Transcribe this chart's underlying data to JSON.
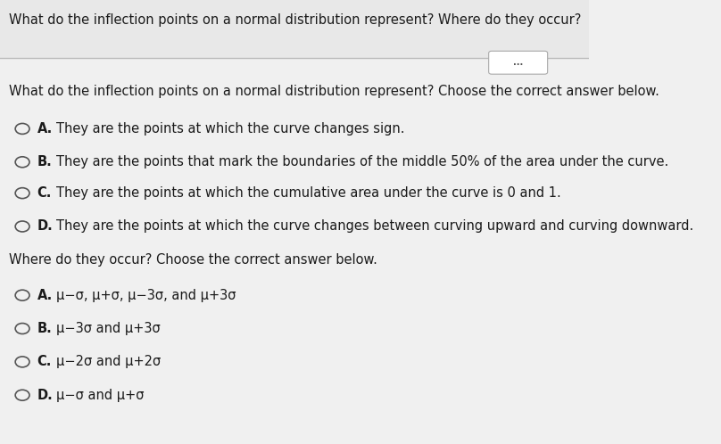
{
  "bg_color": "#f0f0f0",
  "panel_color": "#ffffff",
  "header_text": "What do the inflection points on a normal distribution represent? Where do they occur?",
  "question1": "What do the inflection points on a normal distribution represent? Choose the correct answer below.",
  "question2": "Where do they occur? Choose the correct answer below.",
  "options1": [
    {
      "label": "A.",
      "text": "They are the points at which the curve changes sign."
    },
    {
      "label": "B.",
      "text": "They are the points that mark the boundaries of the middle 50% of the area under the curve."
    },
    {
      "label": "C.",
      "text": "They are the points at which the cumulative area under the curve is 0 and 1."
    },
    {
      "label": "D.",
      "text": "They are the points at which the curve changes between curving upward and curving downward."
    }
  ],
  "options2": [
    {
      "label": "A.",
      "text": "μ−σ, μ+σ, μ−3σ, and μ+3σ"
    },
    {
      "label": "B.",
      "text": "μ−3σ and μ+3σ"
    },
    {
      "label": "C.",
      "text": "μ−2σ and μ+2σ"
    },
    {
      "label": "D.",
      "text": "μ−σ and μ+σ"
    }
  ],
  "dots_button_text": "...",
  "text_color": "#1a1a1a",
  "circle_color": "#555555",
  "header_font_size": 10.5,
  "body_font_size": 10.5,
  "label_font_size": 10.5
}
